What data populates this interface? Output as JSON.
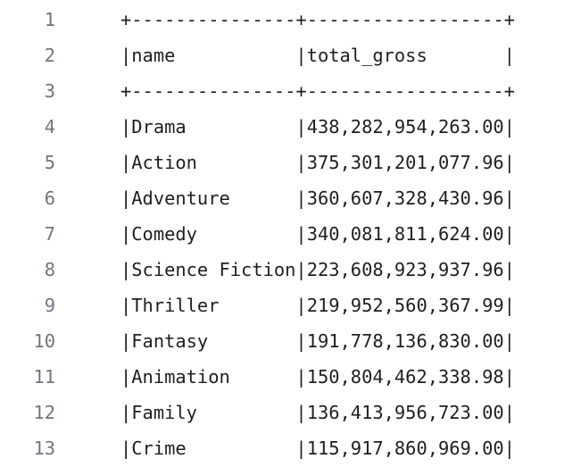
{
  "editor": {
    "lines": [
      {
        "num": "1",
        "text": "+---------------+------------------+"
      },
      {
        "num": "2",
        "text": "|name           |total_gross       |"
      },
      {
        "num": "3",
        "text": "+---------------+------------------+"
      },
      {
        "num": "4",
        "text": "|Drama          |438,282,954,263.00|"
      },
      {
        "num": "5",
        "text": "|Action         |375,301,201,077.96|"
      },
      {
        "num": "6",
        "text": "|Adventure      |360,607,328,430.96|"
      },
      {
        "num": "7",
        "text": "|Comedy         |340,081,811,624.00|"
      },
      {
        "num": "8",
        "text": "|Science Fiction|223,608,923,937.96|"
      },
      {
        "num": "9",
        "text": "|Thriller       |219,952,560,367.99|"
      },
      {
        "num": "10",
        "text": "|Fantasy        |191,778,136,830.00|"
      },
      {
        "num": "11",
        "text": "|Animation      |150,804,462,338.98|"
      },
      {
        "num": "12",
        "text": "|Family         |136,413,956,723.00|"
      },
      {
        "num": "13",
        "text": "|Crime          |115,917,860,969.00|"
      }
    ]
  }
}
